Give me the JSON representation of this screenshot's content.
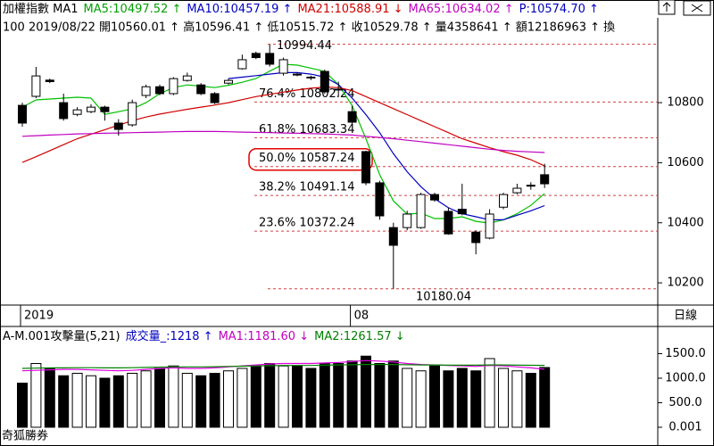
{
  "chart_data": [
    {
      "type": "candlestick",
      "header": [
        {
          "text": "加權指數 MA1",
          "color": "#000000"
        },
        {
          "text": "MA5:10497.52 ↑",
          "color": "#00a000"
        },
        {
          "text": "MA10:10457.19 ↑",
          "color": "#0000c0"
        },
        {
          "text": "MA21:10588.91 ↓",
          "color": "#d00000"
        },
        {
          "text": "MA65:10634.02 ↑",
          "color": "#c000c0"
        },
        {
          "text": "P:10574.70 ↑",
          "color": "#0000c0"
        }
      ],
      "info_line": "100 2019/08/22 開10560.01 ↑ 高10596.41 ↑ 低10515.72 ↑ 收10529.78 ↑ 量4358641 ↑ 額12186963 ↑ 換",
      "categories": [
        "2019",
        null,
        null,
        null,
        null,
        null,
        null,
        null,
        null,
        null,
        null,
        null,
        null,
        null,
        null,
        null,
        null,
        null,
        null,
        null,
        null,
        null,
        null,
        null,
        "08",
        null,
        null,
        null,
        null,
        null,
        null,
        null,
        null,
        null,
        null,
        null,
        null,
        null,
        null
      ],
      "open": [
        10791,
        10821,
        10875,
        10800,
        10761,
        10770,
        10785,
        10732,
        10726,
        10824,
        10853,
        10830,
        10874,
        10859,
        10830,
        10865,
        10913,
        10964,
        10964,
        10898,
        10895,
        10885,
        10904,
        10845,
        10770,
        10637,
        10533,
        10384,
        10384,
        10384,
        10494,
        10438,
        10445,
        10369,
        10349,
        10452,
        10500,
        10525,
        10560.01
      ],
      "high": [
        10800,
        10919,
        10880,
        10830,
        10785,
        10795,
        10790,
        10745,
        10810,
        10860,
        10860,
        10885,
        10900,
        10865,
        10835,
        10880,
        10960,
        10970,
        10994.44,
        10950,
        10900,
        10890,
        10910,
        10870,
        10790,
        10640,
        10540,
        10400,
        10440,
        10500,
        10500,
        10450,
        10530,
        10375,
        10445,
        10500,
        10530,
        10535,
        10596.41
      ],
      "low": [
        10720,
        10815,
        10865,
        10740,
        10755,
        10765,
        10740,
        10690,
        10720,
        10815,
        10825,
        10825,
        10870,
        10825,
        10795,
        10860,
        10910,
        10945,
        10920,
        10890,
        10888,
        10875,
        10830,
        10820,
        10725,
        10525,
        10410,
        10180.04,
        10375,
        10380,
        10470,
        10360,
        10425,
        10295,
        10345,
        10445,
        10495,
        10510,
        10515.72
      ],
      "close": [
        10732,
        10889,
        10870,
        10747,
        10776,
        10785,
        10770,
        10711,
        10800,
        10853,
        10830,
        10880,
        10889,
        10830,
        10800,
        10874,
        10943,
        10950,
        10928,
        10943,
        10892,
        10882,
        10836,
        10842,
        10735,
        10533,
        10423,
        10325,
        10429,
        10494,
        10476,
        10363,
        10430,
        10334,
        10429,
        10494,
        10515,
        10522,
        10529.78
      ],
      "up_color": "#ffffff",
      "down_color": "#000000",
      "series": [
        {
          "color": "#00c000",
          "values": [
            10785,
            10809,
            10812,
            10815,
            10818,
            10815,
            10761,
            10770,
            10779,
            10800,
            10830,
            10850,
            10859,
            10855,
            10850,
            10858,
            10868,
            10880,
            10905,
            10928,
            10925,
            10915,
            10904,
            10860,
            10790,
            10680,
            10560,
            10473,
            10429,
            10432,
            10414,
            10414,
            10420,
            10405,
            10399,
            10410,
            10430,
            10458,
            10497.52
          ]
        },
        {
          "color": "#0000c0",
          "values": [
            null,
            null,
            null,
            null,
            null,
            null,
            null,
            null,
            null,
            null,
            null,
            null,
            null,
            null,
            null,
            10880,
            10885,
            10890,
            10895,
            10900,
            10900,
            10895,
            10885,
            10860,
            10815,
            10760,
            10700,
            10630,
            10570,
            10520,
            10480,
            10450,
            10430,
            10420,
            10410,
            10410,
            10425,
            10440,
            10457.19
          ]
        },
        {
          "color": "#d00000",
          "values": [
            10601,
            10620,
            10640,
            10660,
            10680,
            10695,
            10710,
            10725,
            10740,
            10752,
            10762,
            10770,
            10778,
            10785,
            10792,
            10800,
            10810,
            10820,
            10828,
            10835,
            10842,
            10848,
            10852,
            10850,
            10840,
            10820,
            10800,
            10780,
            10760,
            10740,
            10720,
            10700,
            10680,
            10665,
            10650,
            10637,
            10625,
            10610,
            10588.91
          ]
        },
        {
          "color": "#c000c0",
          "values": [
            10688,
            10690,
            10692,
            10694,
            10696,
            10697,
            10698,
            10699,
            10700,
            10701,
            10702,
            10703,
            10704,
            10704,
            10704,
            10703,
            10702,
            10701,
            10700,
            10699,
            10698,
            10697,
            10696,
            10694,
            10692,
            10688,
            10684,
            10680,
            10675,
            10670,
            10665,
            10660,
            10655,
            10650,
            10645,
            10641,
            10638,
            10636,
            10634.02
          ]
        }
      ],
      "fib_levels": [
        {
          "value": 10802.24,
          "label": "76.4% 10802.24"
        },
        {
          "value": 10683.34,
          "label": "61.8% 10683.34"
        },
        {
          "value": 10587.24,
          "label": "50.0% 10587.24"
        },
        {
          "value": 10491.14,
          "label": "38.2% 10491.14"
        },
        {
          "value": 10372.24,
          "label": "23.6% 10372.24"
        }
      ],
      "extremes": [
        {
          "value": 10994.44,
          "label": "10994.44"
        },
        {
          "value": 10180.04,
          "label": "10180.04"
        }
      ],
      "ylim": [
        10126,
        11023
      ],
      "yticks": [
        10200,
        10400,
        10600,
        10800
      ],
      "period_label": "日線"
    },
    {
      "type": "bar",
      "header": [
        {
          "text": "A-M.001攻擊量(5,21)",
          "color": "#000000"
        },
        {
          "text": "成交量_:1218 ↑",
          "color": "#0000c0"
        },
        {
          "text": "MA1:1181.60 ↓",
          "color": "#c000c0"
        },
        {
          "text": "MA2:1261.57 ↓",
          "color": "#008000"
        }
      ],
      "values": [
        900,
        1300,
        1200,
        1050,
        1100,
        1050,
        1000,
        1050,
        1100,
        1150,
        1200,
        1250,
        1100,
        1050,
        1100,
        1150,
        1200,
        1250,
        1300,
        1250,
        1250,
        1200,
        1300,
        1300,
        1350,
        1450,
        1300,
        1350,
        1200,
        1150,
        1250,
        1150,
        1200,
        1150,
        1400,
        1200,
        1150,
        1100,
        1218
      ],
      "series": [
        {
          "color": "#e000e0",
          "values": [
            1150,
            1160,
            1170,
            1180,
            1180,
            1170,
            1160,
            1150,
            1160,
            1180,
            1200,
            1210,
            1200,
            1200,
            1210,
            1230,
            1250,
            1270,
            1290,
            1300,
            1300,
            1300,
            1310,
            1320,
            1340,
            1360,
            1350,
            1330,
            1300,
            1280,
            1270,
            1260,
            1250,
            1240,
            1260,
            1250,
            1230,
            1210,
            1181.6
          ]
        },
        {
          "color": "#008000",
          "values": [
            1200,
            1205,
            1210,
            1210,
            1215,
            1215,
            1210,
            1210,
            1215,
            1220,
            1225,
            1230,
            1230,
            1230,
            1235,
            1240,
            1245,
            1250,
            1255,
            1260,
            1260,
            1260,
            1265,
            1270,
            1275,
            1280,
            1280,
            1280,
            1275,
            1270,
            1270,
            1265,
            1265,
            1265,
            1270,
            1270,
            1265,
            1263,
            1261.57
          ]
        }
      ],
      "ylim": [
        -255,
        1982
      ],
      "yticks": [
        {
          "value": 1500,
          "label": "1500.0"
        },
        {
          "value": 1000,
          "label": "1000.0"
        },
        {
          "value": 500,
          "label": "500.0"
        },
        0.001
      ],
      "footer": "奇狐勝券"
    }
  ]
}
